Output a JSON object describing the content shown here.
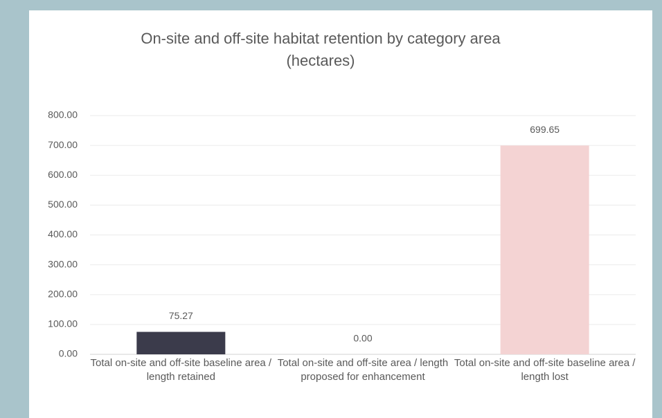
{
  "chart_data": {
    "type": "bar",
    "title": "On-site and off-site habitat retention by category area (hectares)",
    "categories": [
      "Total on-site and off-site baseline area / length retained",
      "Total on-site and off-site area / length proposed for enhancement",
      "Total on-site and off-site baseline area / length lost"
    ],
    "values": [
      75.27,
      0,
      699.65
    ],
    "value_labels": [
      "75.27",
      "0.00",
      "699.65"
    ],
    "colors": [
      "#3b3b4b",
      "#9fb8c0",
      "#f4d3d3"
    ],
    "ylim": [
      0,
      800
    ],
    "yticks": [
      {
        "value": 0,
        "label": "0.00"
      },
      {
        "value": 100,
        "label": "100.00"
      },
      {
        "value": 200,
        "label": "200.00"
      },
      {
        "value": 300,
        "label": "300.00"
      },
      {
        "value": 400,
        "label": "400.00"
      },
      {
        "value": 500,
        "label": "500.00"
      },
      {
        "value": 600,
        "label": "600.00"
      },
      {
        "value": 700,
        "label": "700.00"
      },
      {
        "value": 800,
        "label": "800.00"
      }
    ],
    "grid": true
  }
}
